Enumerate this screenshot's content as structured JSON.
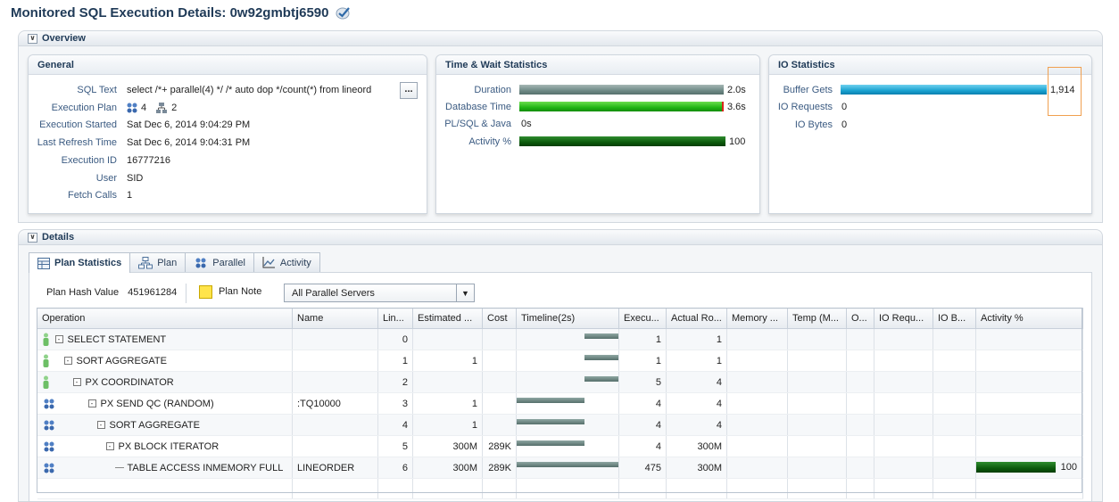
{
  "page": {
    "title": "Monitored SQL Execution Details: 0w92gmbtj6590"
  },
  "overview": {
    "label": "Overview",
    "general": {
      "title": "General",
      "rows": [
        {
          "label": "SQL Text",
          "value": "select /*+ parallel(4) */ /* auto dop */count(*) from lineord"
        },
        {
          "label": "Execution Plan",
          "value": ""
        },
        {
          "label": "Execution Started",
          "value": "Sat Dec 6, 2014 9:04:29 PM"
        },
        {
          "label": "Last Refresh Time",
          "value": "Sat Dec 6, 2014 9:04:31 PM"
        },
        {
          "label": "Execution ID",
          "value": "16777216"
        },
        {
          "label": "User",
          "value": "SID"
        },
        {
          "label": "Fetch Calls",
          "value": "1"
        }
      ],
      "plan_servers": "4",
      "plan_instances": "2",
      "more_button": "..."
    },
    "time_wait": {
      "title": "Time & Wait Statistics",
      "rows": [
        {
          "label": "Duration",
          "value": "2.0s",
          "fill": 1.0
        },
        {
          "label": "Database Time",
          "value": "3.6s",
          "fill": 1.0
        },
        {
          "label": "PL/SQL & Java",
          "value": "0s",
          "fill": 0
        },
        {
          "label": "Activity %",
          "value": "100",
          "fill": 1.0
        }
      ]
    },
    "io": {
      "title": "IO Statistics",
      "rows": [
        {
          "label": "Buffer Gets",
          "value": "1,914",
          "fill": 1.0
        },
        {
          "label": "IO Requests",
          "value": "0",
          "fill": 0
        },
        {
          "label": "IO Bytes",
          "value": "0",
          "fill": 0
        }
      ]
    }
  },
  "details": {
    "label": "Details",
    "tabs": [
      "Plan Statistics",
      "Plan",
      "Parallel",
      "Activity"
    ],
    "plan_hash_label": "Plan Hash Value",
    "plan_hash_value": "451961284",
    "plan_note_label": "Plan Note",
    "server_filter": "All Parallel Servers",
    "columns": [
      "Operation",
      "Name",
      "Lin...",
      "Estimated ...",
      "Cost",
      "Timeline(2s)",
      "Execu...",
      "Actual Ro...",
      "Memory ...",
      "Temp (M...",
      "O...",
      "IO Requ...",
      "IO B...",
      "Activity %"
    ],
    "rows": [
      {
        "op": "SELECT STATEMENT",
        "depth": 0,
        "kind": "qc",
        "expand": "-",
        "name": "",
        "line": "0",
        "est": "",
        "cost": "",
        "tl_start": 0.67,
        "tl_end": 1.0,
        "exec": "1",
        "rows": "1",
        "activity": "",
        "act_fill": 0
      },
      {
        "op": "SORT AGGREGATE",
        "depth": 1,
        "kind": "qc",
        "expand": "-",
        "name": "",
        "line": "1",
        "est": "1",
        "cost": "",
        "tl_start": 0.67,
        "tl_end": 1.0,
        "exec": "1",
        "rows": "1",
        "activity": "",
        "act_fill": 0
      },
      {
        "op": "PX COORDINATOR",
        "depth": 2,
        "kind": "qc",
        "expand": "-",
        "name": "",
        "line": "2",
        "est": "",
        "cost": "",
        "tl_start": 0.67,
        "tl_end": 1.0,
        "exec": "5",
        "rows": "4",
        "activity": "",
        "act_fill": 0
      },
      {
        "op": "PX SEND QC (RANDOM)",
        "depth": 3,
        "kind": "px",
        "expand": "-",
        "name": ":TQ10000",
        "line": "3",
        "est": "1",
        "cost": "",
        "tl_start": 0.0,
        "tl_end": 0.67,
        "exec": "4",
        "rows": "4",
        "activity": "",
        "act_fill": 0
      },
      {
        "op": "SORT AGGREGATE",
        "depth": 4,
        "kind": "px",
        "expand": "-",
        "name": "",
        "line": "4",
        "est": "1",
        "cost": "",
        "tl_start": 0.0,
        "tl_end": 0.67,
        "exec": "4",
        "rows": "4",
        "activity": "",
        "act_fill": 0
      },
      {
        "op": "PX BLOCK ITERATOR",
        "depth": 5,
        "kind": "px",
        "expand": "-",
        "name": "",
        "line": "5",
        "est": "300M",
        "cost": "289K",
        "tl_start": 0.0,
        "tl_end": 0.67,
        "exec": "4",
        "rows": "300M",
        "activity": "",
        "act_fill": 0
      },
      {
        "op": "TABLE ACCESS INMEMORY FULL",
        "depth": 6,
        "kind": "px",
        "expand": "",
        "name": "LINEORDER",
        "line": "6",
        "est": "300M",
        "cost": "289K",
        "tl_start": 0.0,
        "tl_end": 1.0,
        "exec": "475",
        "rows": "300M",
        "activity": "100",
        "act_fill": 1.0
      }
    ]
  }
}
